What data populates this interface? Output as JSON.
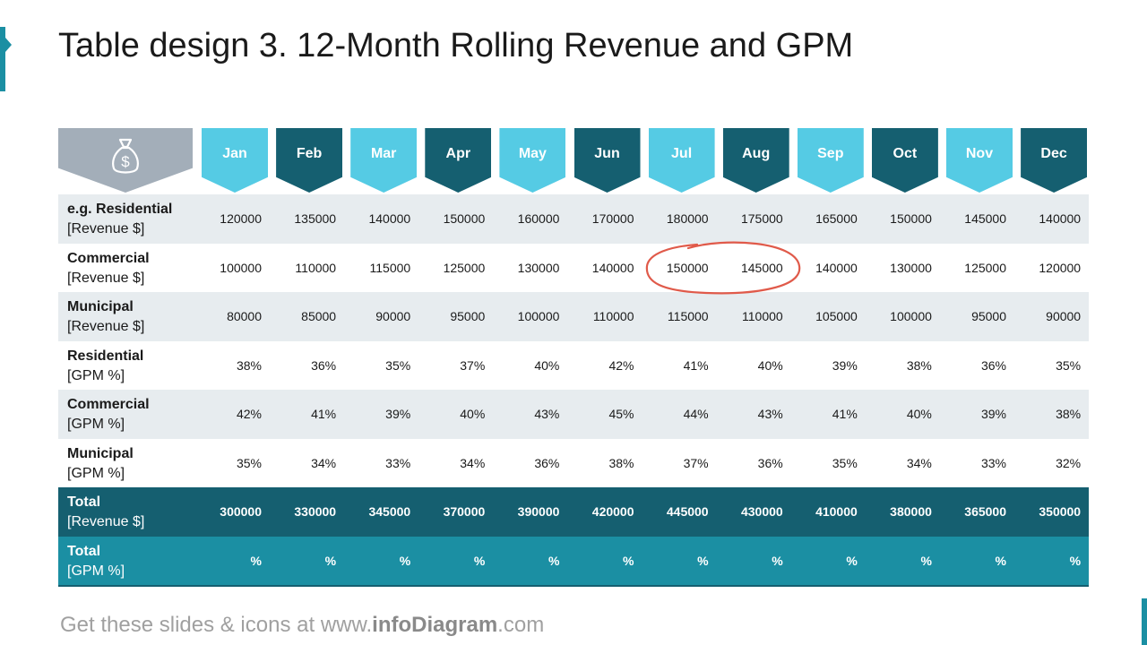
{
  "title": "Table design 3. 12-Month Rolling Revenue and GPM",
  "header_icon": "money-bag-icon",
  "months": [
    "Jan",
    "Feb",
    "Mar",
    "Apr",
    "May",
    "Jun",
    "Jul",
    "Aug",
    "Sep",
    "Oct",
    "Nov",
    "Dec"
  ],
  "rows": [
    {
      "label": "e.g. Residential",
      "sub": "[Revenue $]",
      "values": [
        "120000",
        "135000",
        "140000",
        "150000",
        "160000",
        "170000",
        "180000",
        "175000",
        "165000",
        "150000",
        "145000",
        "140000"
      ]
    },
    {
      "label": "Commercial",
      "sub": "[Revenue $]",
      "values": [
        "100000",
        "110000",
        "115000",
        "125000",
        "130000",
        "140000",
        "150000",
        "145000",
        "140000",
        "130000",
        "125000",
        "120000"
      ]
    },
    {
      "label": "Municipal",
      "sub": "[Revenue $]",
      "values": [
        "80000",
        "85000",
        "90000",
        "95000",
        "100000",
        "110000",
        "115000",
        "110000",
        "105000",
        "100000",
        "95000",
        "90000"
      ]
    },
    {
      "label": "Residential",
      "sub": "[GPM %]",
      "values": [
        "38%",
        "36%",
        "35%",
        "37%",
        "40%",
        "42%",
        "41%",
        "40%",
        "39%",
        "38%",
        "36%",
        "35%"
      ]
    },
    {
      "label": "Commercial",
      "sub": "[GPM %]",
      "values": [
        "42%",
        "41%",
        "39%",
        "40%",
        "43%",
        "45%",
        "44%",
        "43%",
        "41%",
        "40%",
        "39%",
        "38%"
      ]
    },
    {
      "label": "Municipal",
      "sub": "[GPM %]",
      "values": [
        "35%",
        "34%",
        "33%",
        "34%",
        "36%",
        "38%",
        "37%",
        "36%",
        "35%",
        "34%",
        "33%",
        "32%"
      ]
    },
    {
      "label": "Total",
      "sub": "[Revenue $]",
      "values": [
        "300000",
        "330000",
        "345000",
        "370000",
        "390000",
        "420000",
        "445000",
        "430000",
        "410000",
        "380000",
        "365000",
        "350000"
      ]
    },
    {
      "label": "Total",
      "sub": "[GPM %]",
      "values": [
        "%",
        "%",
        "%",
        "%",
        "%",
        "%",
        "%",
        "%",
        "%",
        "%",
        "%",
        "%"
      ]
    }
  ],
  "footer": {
    "prefix": "Get these slides & icons at www.",
    "brand": "infoDiagram",
    "suffix": ".com"
  },
  "colors": {
    "light_month": "#55cbe4",
    "dark_month": "#155f70",
    "total_revenue": "#155f70",
    "total_gpm": "#1b8fa3",
    "highlight_circle": "#e05a4a"
  }
}
